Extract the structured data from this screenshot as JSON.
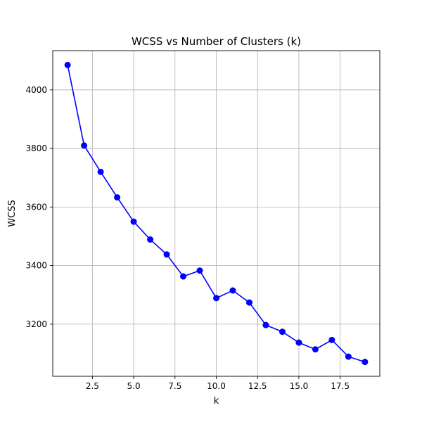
{
  "chart_data": {
    "type": "line",
    "title": "WCSS vs Number of Clusters (k)",
    "xlabel": "k",
    "ylabel": "WCSS",
    "xlim": [
      0.1,
      19.9
    ],
    "ylim": [
      3022,
      4134
    ],
    "xticks": [
      2.5,
      5.0,
      7.5,
      10.0,
      12.5,
      15.0,
      17.5
    ],
    "xtick_labels": [
      "2.5",
      "5.0",
      "7.5",
      "10.0",
      "12.5",
      "15.0",
      "17.5"
    ],
    "yticks": [
      3200,
      3400,
      3600,
      3800,
      4000
    ],
    "ytick_labels": [
      "3200",
      "3400",
      "3600",
      "3800",
      "4000"
    ],
    "grid": true,
    "series": [
      {
        "color": "#0000ff",
        "marker": "circle",
        "x": [
          1,
          2,
          3,
          4,
          5,
          6,
          7,
          8,
          9,
          10,
          11,
          12,
          13,
          14,
          15,
          16,
          17,
          18,
          19
        ],
        "y": [
          4085,
          3810,
          3720,
          3633,
          3550,
          3489,
          3438,
          3363,
          3383,
          3289,
          3315,
          3274,
          3197,
          3174,
          3137,
          3114,
          3146,
          3089,
          3071
        ]
      }
    ]
  }
}
